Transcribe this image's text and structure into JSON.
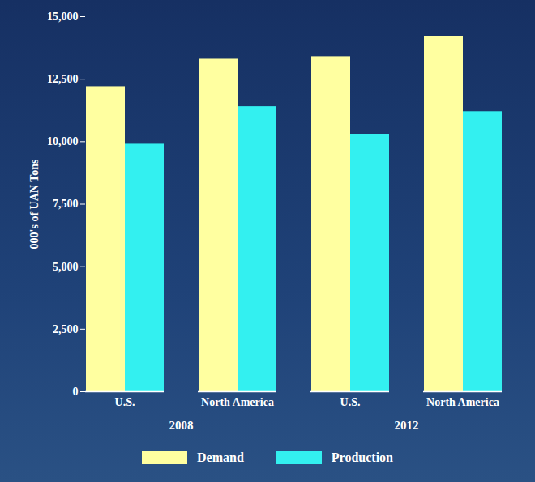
{
  "chart_data": {
    "type": "bar",
    "y_label": "000's of UAN Tons",
    "categories": [
      "U.S.",
      "North America",
      "U.S.",
      "North America"
    ],
    "category_groups": [
      "2008",
      "2008",
      "2012",
      "2012"
    ],
    "series": [
      {
        "name": "Demand",
        "color": "#ffffa0",
        "values": [
          12200,
          13300,
          13400,
          14200
        ]
      },
      {
        "name": "Production",
        "color": "#33f0f0",
        "values": [
          9900,
          11400,
          10300,
          11200
        ]
      }
    ],
    "ylim": [
      0,
      15000
    ],
    "yticks": [
      0,
      {
        "value": 2500,
        "label": "2,500"
      },
      {
        "value": 5000,
        "label": "5,000"
      },
      {
        "value": 7500,
        "label": "7,500"
      },
      {
        "value": 10000,
        "label": "10,000"
      },
      {
        "value": 12500,
        "label": "12,500"
      },
      {
        "value": 15000,
        "label": "15,000"
      }
    ],
    "grid": false,
    "legend": "bottom"
  }
}
